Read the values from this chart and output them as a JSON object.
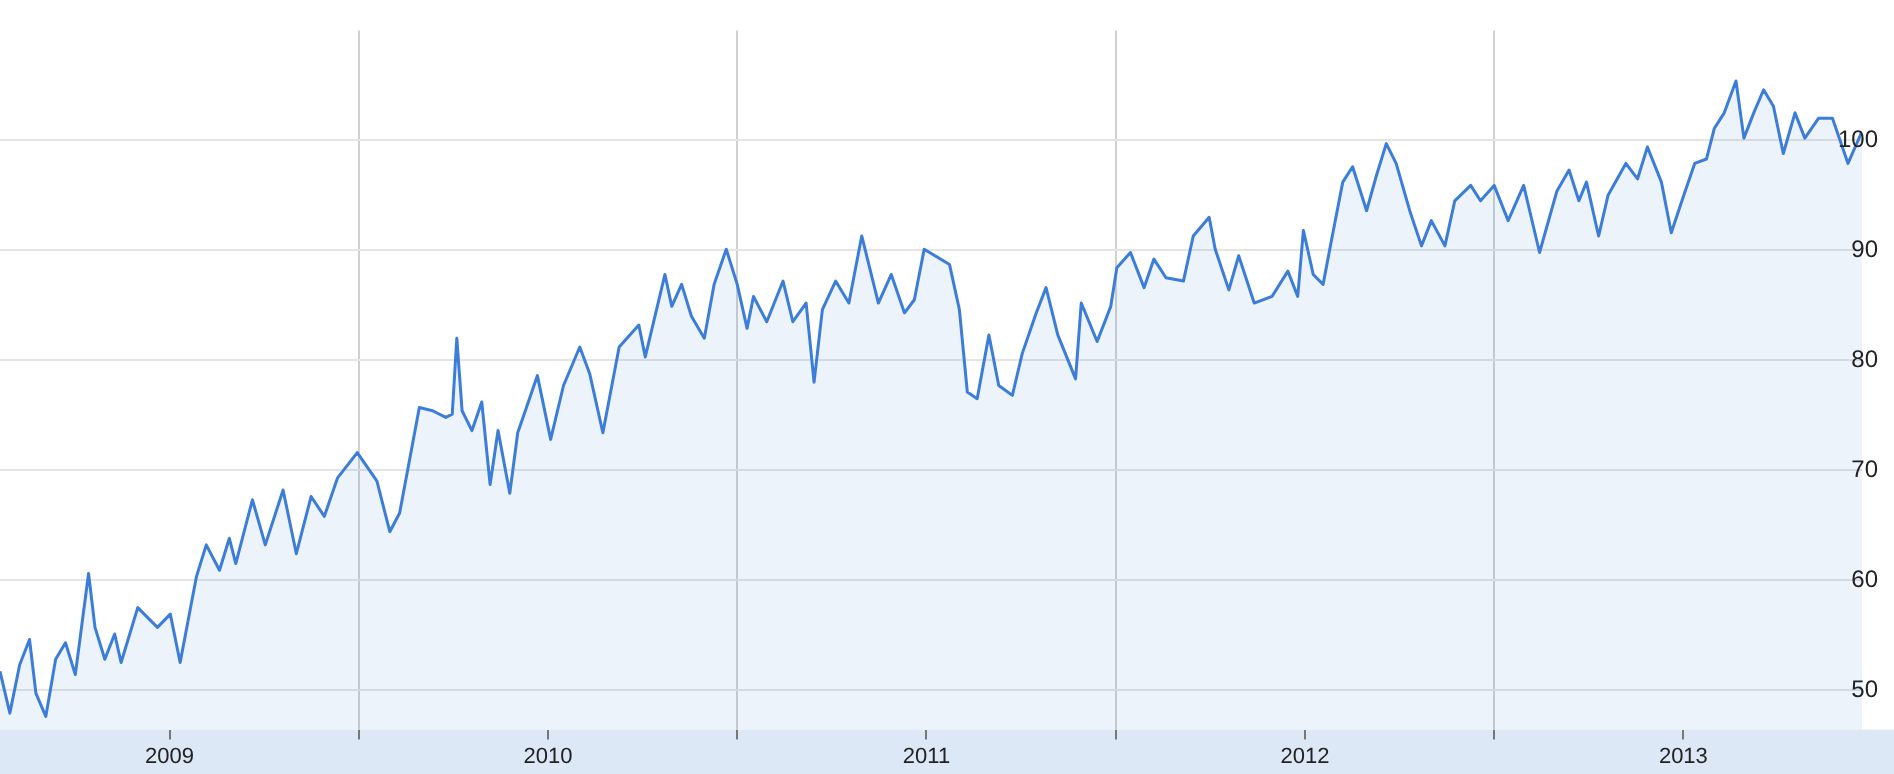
{
  "chart_data": {
    "type": "area",
    "grid": true,
    "x": [
      2009.052,
      2009.078,
      2009.104,
      2009.13,
      2009.147,
      2009.173,
      2009.199,
      2009.225,
      2009.251,
      2009.286,
      2009.303,
      2009.329,
      2009.355,
      2009.372,
      2009.416,
      2009.468,
      2009.502,
      2009.528,
      2009.571,
      2009.597,
      2009.632,
      2009.658,
      2009.675,
      2009.719,
      2009.753,
      2009.8,
      2009.835,
      2009.874,
      2009.909,
      2009.944,
      2009.996,
      2010.048,
      2010.082,
      2010.108,
      2010.16,
      2010.195,
      2010.23,
      2010.247,
      2010.259,
      2010.273,
      2010.299,
      2010.325,
      2010.347,
      2010.368,
      2010.399,
      2010.42,
      2010.446,
      2010.472,
      2010.507,
      2010.541,
      2010.584,
      2010.61,
      2010.645,
      2010.688,
      2010.74,
      2010.757,
      2010.809,
      2010.827,
      2010.853,
      2010.879,
      2010.913,
      2010.939,
      2010.971,
      2011.0,
      2011.026,
      2011.043,
      2011.078,
      2011.121,
      2011.147,
      2011.182,
      2011.203,
      2011.225,
      2011.26,
      2011.295,
      2011.329,
      2011.373,
      2011.407,
      2011.442,
      2011.468,
      2011.494,
      2011.561,
      2011.587,
      2011.608,
      2011.634,
      2011.665,
      2011.691,
      2011.727,
      2011.753,
      2011.79,
      2011.816,
      2011.847,
      2011.894,
      2011.909,
      2011.951,
      2011.987,
      2012.003,
      2012.039,
      2012.075,
      2012.101,
      2012.133,
      2012.179,
      2012.205,
      2012.247,
      2012.263,
      2012.299,
      2012.325,
      2012.366,
      2012.413,
      2012.455,
      2012.481,
      2012.496,
      2012.522,
      2012.548,
      2012.574,
      2012.6,
      2012.626,
      2012.663,
      2012.689,
      2012.715,
      2012.741,
      2012.777,
      2012.808,
      2012.834,
      2012.87,
      2012.896,
      2012.938,
      2012.964,
      2013.0,
      2013.037,
      2013.078,
      2013.12,
      2013.166,
      2013.198,
      2013.224,
      2013.244,
      2013.276,
      2013.301,
      2013.348,
      2013.379,
      2013.405,
      2013.442,
      2013.468,
      2013.504,
      2013.53,
      2013.561,
      2013.582,
      2013.608,
      2013.639,
      2013.66,
      2013.686,
      2013.712,
      2013.738,
      2013.764,
      2013.795,
      2013.821,
      2013.857,
      2013.894,
      2013.935,
      2013.972
    ],
    "series": [
      {
        "color": "#3b7dd8",
        "values": [
          51.7,
          47.9,
          52.3,
          54.6,
          49.7,
          47.6,
          52.8,
          54.3,
          51.4,
          60.6,
          55.7,
          52.8,
          55.1,
          52.5,
          57.5,
          55.7,
          56.9,
          52.5,
          60.3,
          63.2,
          60.9,
          63.8,
          61.5,
          67.3,
          63.2,
          68.2,
          62.4,
          67.6,
          65.8,
          69.3,
          71.6,
          69.0,
          64.4,
          66.1,
          75.7,
          75.4,
          74.8,
          75.1,
          82.0,
          75.4,
          73.6,
          76.2,
          68.7,
          73.6,
          67.9,
          73.4,
          76.0,
          78.6,
          72.8,
          77.7,
          81.2,
          78.8,
          73.4,
          81.2,
          83.2,
          80.3,
          87.8,
          84.9,
          86.9,
          84.0,
          82.0,
          86.9,
          90.1,
          86.9,
          82.9,
          85.8,
          83.5,
          87.2,
          83.5,
          85.2,
          78.0,
          84.6,
          87.2,
          85.2,
          91.3,
          85.2,
          87.8,
          84.3,
          85.5,
          90.1,
          88.7,
          84.6,
          77.1,
          76.5,
          82.3,
          77.7,
          76.8,
          80.6,
          84.3,
          86.6,
          82.3,
          78.3,
          85.2,
          81.7,
          84.9,
          88.4,
          89.8,
          86.6,
          89.2,
          87.5,
          87.2,
          91.3,
          93.0,
          90.1,
          86.4,
          89.5,
          85.2,
          85.8,
          88.1,
          85.8,
          91.8,
          87.8,
          86.9,
          91.6,
          96.2,
          97.6,
          93.6,
          96.8,
          99.7,
          97.9,
          93.6,
          90.4,
          92.7,
          90.4,
          94.5,
          95.9,
          94.5,
          95.9,
          92.7,
          95.9,
          89.8,
          95.4,
          97.3,
          94.5,
          96.2,
          91.3,
          95.0,
          97.9,
          96.5,
          99.4,
          96.2,
          91.6,
          95.3,
          97.9,
          98.3,
          101.1,
          102.5,
          105.4,
          100.2,
          102.5,
          104.6,
          103.1,
          98.8,
          102.5,
          100.2,
          102.0,
          102.0,
          97.9,
          100.8
        ]
      }
    ],
    "xlim": [
      2009.052,
      2013.972
    ],
    "xticks": [
      {
        "value": 2009.5,
        "label": "2009"
      },
      {
        "value": 2010,
        "label": null
      },
      {
        "value": 2010.5,
        "label": "2010"
      },
      {
        "value": 2011,
        "label": null
      },
      {
        "value": 2011.5,
        "label": "2011"
      },
      {
        "value": 2012,
        "label": null
      },
      {
        "value": 2012.5,
        "label": "2012"
      },
      {
        "value": 2013,
        "label": null
      },
      {
        "value": 2013.5,
        "label": "2013"
      }
    ],
    "ylim": [
      46.4,
      110
    ],
    "yticks": [
      50,
      60,
      70,
      80,
      90,
      100
    ]
  }
}
